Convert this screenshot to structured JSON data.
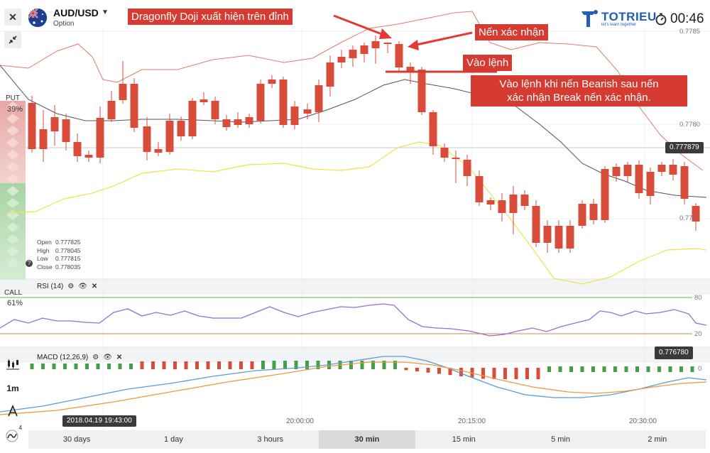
{
  "header": {
    "asset": "AUD/USD",
    "asset_type": "Option",
    "timer": "00:46",
    "logo_text": "TOTRIEU",
    "logo_sub": "let's learn together"
  },
  "sidebar": {
    "put_label": "PUT",
    "put_pct": "39%",
    "call_label": "CALL",
    "call_pct": "61%",
    "tools": {
      "timeframe": "1m",
      "drawings_count": "4"
    }
  },
  "price_axis": {
    "labels": [
      "0.7785",
      "0.7780",
      "0.777"
    ],
    "current_price": "0.777879",
    "macd_value": "0.776780",
    "rsi_levels": [
      "80",
      "20"
    ],
    "macd_zero": "0"
  },
  "ohlc": {
    "open_label": "Open",
    "open": "0.777825",
    "high_label": "High",
    "high": "0.778045",
    "low_label": "Low",
    "low": "0.777815",
    "close_label": "Close",
    "close": "0.778035"
  },
  "indicators": {
    "rsi": "RSI (14)",
    "macd": "MACD (12,26,9)"
  },
  "annotations": {
    "dragonfly": "Dragonfly Doji xuất hiện trên đỉnh",
    "confirm": "Nến xác nhận",
    "entry": "Vào lệnh",
    "entry_rule_line1": "Vào lệnh khi nến Bearish sau nến",
    "entry_rule_line2": "xác nhận Break nến xác nhận."
  },
  "time_axis": {
    "labels": [
      "20:00:00",
      "20:15:00",
      "20:30:00"
    ],
    "cursor_time": "2018.04.19 19:43:00"
  },
  "timeframes": {
    "items": [
      "30 days",
      "1 day",
      "3 hours",
      "30 min",
      "15 min",
      "5 min",
      "2 min"
    ],
    "active": "30 min"
  },
  "colors": {
    "bull": "#43a047",
    "bear": "#d94c3a",
    "bollinger_upper": "#e07a6a",
    "bollinger_lower": "#f2e24a",
    "moving_average": "#555555",
    "rsi_line": "#9b6bd6",
    "rsi_upper": "#5dbb3f",
    "rsi_lower": "#d9844a",
    "macd_line": "#5b9bd5",
    "signal_line": "#f0983a",
    "annotation": "#d63b31"
  }
}
